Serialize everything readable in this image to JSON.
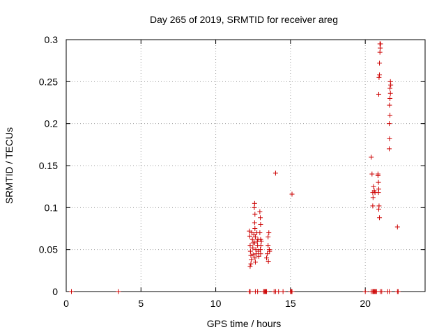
{
  "chart_data": {
    "type": "scatter",
    "title": "Day 265 of 2019, SRMTID for receiver areg",
    "xlabel": "GPS time / hours",
    "ylabel": "SRMTID / TECUs",
    "xlim": [
      0,
      24
    ],
    "ylim": [
      0,
      0.3
    ],
    "x_ticks": [
      0,
      5,
      10,
      15,
      20
    ],
    "x_tick_labels": [
      "0",
      "5",
      "10",
      "15",
      "20"
    ],
    "y_ticks": [
      0,
      0.05,
      0.1,
      0.15,
      0.2,
      0.25,
      0.3
    ],
    "y_tick_labels": [
      "0",
      "0.05",
      "0.1",
      "0.15",
      "0.2",
      "0.25",
      "0.3"
    ],
    "grid": true,
    "marker": "+",
    "series_color": "#cc0000",
    "points": [
      [
        0.35,
        0
      ],
      [
        3.5,
        0
      ],
      [
        12.25,
        0
      ],
      [
        12.3,
        0
      ],
      [
        12.65,
        0
      ],
      [
        12.8,
        0
      ],
      [
        13.2,
        0
      ],
      [
        13.25,
        0
      ],
      [
        13.3,
        0
      ],
      [
        13.35,
        0
      ],
      [
        13.4,
        0
      ],
      [
        13.9,
        0
      ],
      [
        14.0,
        0
      ],
      [
        14.2,
        0
      ],
      [
        14.5,
        0
      ],
      [
        15.0,
        0
      ],
      [
        15.05,
        0
      ],
      [
        15.1,
        0
      ],
      [
        20.0,
        0
      ],
      [
        20.4,
        0
      ],
      [
        20.5,
        0
      ],
      [
        20.55,
        0
      ],
      [
        20.6,
        0
      ],
      [
        20.65,
        0
      ],
      [
        20.7,
        0
      ],
      [
        20.75,
        0
      ],
      [
        21.0,
        0
      ],
      [
        21.1,
        0
      ],
      [
        21.5,
        0
      ],
      [
        21.6,
        0
      ],
      [
        22.15,
        0
      ],
      [
        22.2,
        0
      ],
      [
        12.25,
        0.072
      ],
      [
        12.28,
        0.066
      ],
      [
        12.3,
        0.055
      ],
      [
        12.32,
        0.048
      ],
      [
        12.35,
        0.043
      ],
      [
        12.38,
        0.038
      ],
      [
        12.3,
        0.03
      ],
      [
        12.35,
        0.033
      ],
      [
        12.42,
        0.07
      ],
      [
        12.45,
        0.062
      ],
      [
        12.48,
        0.052
      ],
      [
        12.5,
        0.044
      ],
      [
        12.5,
        0.058
      ],
      [
        12.55,
        0.068
      ],
      [
        12.58,
        0.1
      ],
      [
        12.6,
        0.105
      ],
      [
        12.62,
        0.092
      ],
      [
        12.6,
        0.082
      ],
      [
        12.62,
        0.075
      ],
      [
        12.65,
        0.065
      ],
      [
        12.6,
        0.058
      ],
      [
        12.68,
        0.05
      ],
      [
        12.7,
        0.045
      ],
      [
        12.62,
        0.04
      ],
      [
        12.65,
        0.035
      ],
      [
        12.75,
        0.07
      ],
      [
        12.78,
        0.06
      ],
      [
        12.8,
        0.055
      ],
      [
        12.82,
        0.062
      ],
      [
        12.85,
        0.048
      ],
      [
        12.88,
        0.042
      ],
      [
        12.95,
        0.095
      ],
      [
        12.98,
        0.088
      ],
      [
        13.0,
        0.08
      ],
      [
        12.95,
        0.07
      ],
      [
        13.0,
        0.062
      ],
      [
        13.02,
        0.055
      ],
      [
        12.98,
        0.05
      ],
      [
        13.05,
        0.06
      ],
      [
        13.0,
        0.045
      ],
      [
        13.4,
        0.04
      ],
      [
        13.45,
        0.045
      ],
      [
        13.5,
        0.055
      ],
      [
        13.5,
        0.065
      ],
      [
        13.55,
        0.07
      ],
      [
        13.58,
        0.05
      ],
      [
        13.6,
        0.048
      ],
      [
        13.52,
        0.036
      ],
      [
        14.0,
        0.141
      ],
      [
        15.1,
        0.116
      ],
      [
        20.4,
        0.16
      ],
      [
        20.45,
        0.14
      ],
      [
        20.5,
        0.118
      ],
      [
        20.52,
        0.112
      ],
      [
        20.5,
        0.102
      ],
      [
        20.55,
        0.125
      ],
      [
        20.6,
        0.12
      ],
      [
        20.65,
        0.118
      ],
      [
        20.85,
        0.14
      ],
      [
        20.85,
        0.138
      ],
      [
        20.88,
        0.13
      ],
      [
        20.9,
        0.122
      ],
      [
        20.88,
        0.118
      ],
      [
        20.92,
        0.102
      ],
      [
        20.9,
        0.098
      ],
      [
        20.95,
        0.088
      ],
      [
        20.9,
        0.235
      ],
      [
        20.92,
        0.255
      ],
      [
        20.95,
        0.258
      ],
      [
        20.95,
        0.272
      ],
      [
        20.98,
        0.285
      ],
      [
        21.0,
        0.29
      ],
      [
        20.98,
        0.295
      ],
      [
        21.02,
        0.295
      ],
      [
        21.6,
        0.17
      ],
      [
        21.62,
        0.182
      ],
      [
        21.6,
        0.2
      ],
      [
        21.65,
        0.21
      ],
      [
        21.62,
        0.222
      ],
      [
        21.65,
        0.23
      ],
      [
        21.68,
        0.236
      ],
      [
        21.65,
        0.242
      ],
      [
        21.7,
        0.246
      ],
      [
        21.68,
        0.25
      ],
      [
        22.15,
        0.077
      ]
    ]
  }
}
